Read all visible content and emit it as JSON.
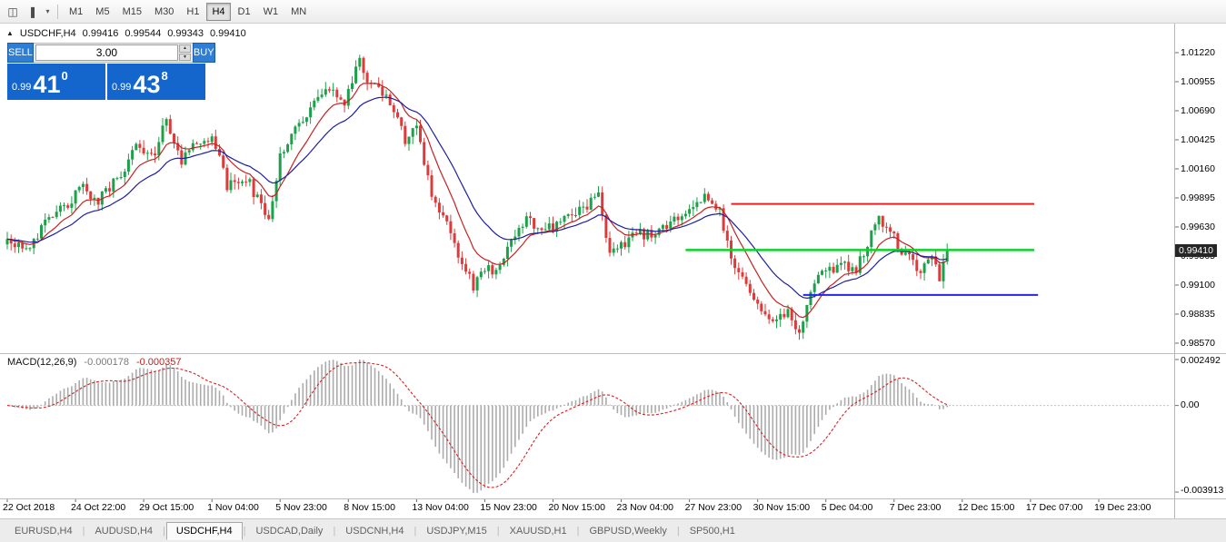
{
  "toolbar": {
    "icons": [
      {
        "name": "chart-window-icon",
        "glyph": "◫"
      },
      {
        "name": "candlestick-chart-icon",
        "glyph": "❚"
      },
      {
        "name": "dropdown-caret-icon",
        "glyph": "▾"
      }
    ],
    "timeframes": [
      {
        "label": "M1",
        "active": false
      },
      {
        "label": "M5",
        "active": false
      },
      {
        "label": "M15",
        "active": false
      },
      {
        "label": "M30",
        "active": false
      },
      {
        "label": "H1",
        "active": false
      },
      {
        "label": "H4",
        "active": true
      },
      {
        "label": "D1",
        "active": false
      },
      {
        "label": "W1",
        "active": false
      },
      {
        "label": "MN",
        "active": false
      }
    ]
  },
  "chart": {
    "header": {
      "toggle_glyph": "▲",
      "symbol_period": "USDCHF,H4",
      "open": "0.99416",
      "high": "0.99544",
      "low": "0.99343",
      "close": "0.99410"
    },
    "trade_widget": {
      "sell_button": "SELL",
      "buy_button": "BUY",
      "volume": "3.00",
      "spinner_up": "▲",
      "spinner_down": "▼",
      "sell_price": {
        "small": "0.99",
        "big": "41",
        "sup": "0"
      },
      "buy_price": {
        "small": "0.99",
        "big": "43",
        "sup": "8"
      }
    },
    "price_axis": {
      "ticks": [
        "1.01220",
        "1.00955",
        "1.00690",
        "1.00425",
        "1.00160",
        "0.99895",
        "0.99630",
        "0.99365",
        "0.99100",
        "0.98835",
        "0.98570"
      ],
      "current_price": "0.99410"
    },
    "time_axis": {
      "labels": [
        "22 Oct 2018",
        "24 Oct 22:00",
        "29 Oct 15:00",
        "1 Nov 04:00",
        "5 Nov 23:00",
        "8 Nov 15:00",
        "13 Nov 04:00",
        "15 Nov 23:00",
        "20 Nov 15:00",
        "23 Nov 04:00",
        "27 Nov 23:00",
        "30 Nov 15:00",
        "5 Dec 04:00",
        "7 Dec 23:00",
        "12 Dec 15:00",
        "17 Dec 07:00",
        "19 Dec 23:00"
      ]
    }
  },
  "macd": {
    "title": "MACD(12,26,9)",
    "main_value": "-0.000178",
    "signal_value": "-0.000357",
    "axis_top": "0.002492",
    "axis_zero": "0.00",
    "axis_bottom": "-0.003913"
  },
  "tabs": [
    {
      "label": "EURUSD,H4",
      "active": false
    },
    {
      "label": "AUDUSD,H4",
      "active": false
    },
    {
      "label": "USDCHF,H4",
      "active": true
    },
    {
      "label": "USDCAD,Daily",
      "active": false
    },
    {
      "label": "USDCNH,H4",
      "active": false
    },
    {
      "label": "USDJPY,M15",
      "active": false
    },
    {
      "label": "XAUUSD,H1",
      "active": false
    },
    {
      "label": "GBPUSD,Weekly",
      "active": false
    },
    {
      "label": "SP500,H1",
      "active": false
    }
  ],
  "chart_data": {
    "type": "candlestick",
    "symbol": "USDCHF",
    "timeframe": "H4",
    "title": "USDCHF,H4",
    "price_axis_range": [
      0.98479,
      1.01485
    ],
    "candle_count": 249,
    "last_close": 0.9941,
    "time_label_step": 18,
    "close_anchors": [
      [
        0,
        0.9952
      ],
      [
        5,
        0.9945
      ],
      [
        12,
        0.9972
      ],
      [
        20,
        0.9998
      ],
      [
        24,
        0.9986
      ],
      [
        29,
        1.0008
      ],
      [
        34,
        1.0035
      ],
      [
        39,
        1.0026
      ],
      [
        42,
        1.0062
      ],
      [
        46,
        1.0024
      ],
      [
        50,
        1.004
      ],
      [
        54,
        1.0048
      ],
      [
        58,
        1.0
      ],
      [
        63,
        1.0008
      ],
      [
        69,
        0.9968
      ],
      [
        72,
        1.003
      ],
      [
        77,
        1.0058
      ],
      [
        82,
        1.0078
      ],
      [
        86,
        1.0092
      ],
      [
        89,
        1.0072
      ],
      [
        93,
        1.0118
      ],
      [
        96,
        1.009
      ],
      [
        100,
        1.0085
      ],
      [
        105,
        1.0042
      ],
      [
        108,
        1.0058
      ],
      [
        112,
        0.9992
      ],
      [
        116,
        0.9966
      ],
      [
        119,
        0.9938
      ],
      [
        123,
        0.9908
      ],
      [
        126,
        0.9922
      ],
      [
        130,
        0.9928
      ],
      [
        134,
        0.9952
      ],
      [
        137,
        0.9972
      ],
      [
        142,
        0.9958
      ],
      [
        146,
        0.997
      ],
      [
        149,
        0.9974
      ],
      [
        153,
        0.9984
      ],
      [
        156,
        0.999
      ],
      [
        159,
        0.9934
      ],
      [
        162,
        0.9946
      ],
      [
        166,
        0.996
      ],
      [
        170,
        0.9954
      ],
      [
        173,
        0.9964
      ],
      [
        177,
        0.9974
      ],
      [
        180,
        0.9982
      ],
      [
        184,
        0.9988
      ],
      [
        188,
        0.9978
      ],
      [
        191,
        0.993
      ],
      [
        195,
        0.991
      ],
      [
        198,
        0.9896
      ],
      [
        202,
        0.9874
      ],
      [
        206,
        0.9886
      ],
      [
        209,
        0.9864
      ],
      [
        213,
        0.9914
      ],
      [
        216,
        0.992
      ],
      [
        220,
        0.993
      ],
      [
        224,
        0.9926
      ],
      [
        227,
        0.9946
      ],
      [
        230,
        0.9972
      ],
      [
        233,
        0.9958
      ],
      [
        237,
        0.9936
      ],
      [
        241,
        0.9924
      ],
      [
        244,
        0.9932
      ],
      [
        246,
        0.9918
      ],
      [
        248,
        0.9941
      ]
    ],
    "candle_colors": {
      "bull": "#1ca04a",
      "bear": "#dd3b3b"
    },
    "moving_averages": [
      {
        "name": "fast-ma",
        "method": "ema",
        "period": 10,
        "color": "#c62222",
        "width": 1.2
      },
      {
        "name": "slow-ma",
        "method": "ema",
        "period": 22,
        "color": "#1f1f9e",
        "width": 1.2
      }
    ],
    "trendlines": [
      {
        "name": "resistance-line",
        "price": 0.9984,
        "from_bar": 191,
        "to_bar": 271,
        "color": "#e82222",
        "width": 2
      },
      {
        "name": "mid-support-line",
        "price": 0.9942,
        "from_bar": 179,
        "to_bar": 271,
        "color": "#0ad426",
        "width": 2.5
      },
      {
        "name": "lower-support-line",
        "price": 0.9901,
        "from_bar": 210,
        "to_bar": 272,
        "color": "#2626e8",
        "width": 2
      }
    ],
    "macd_params": [
      12,
      26,
      9
    ],
    "macd_colors": {
      "histogram": "#ababab",
      "signal": "#d42222"
    }
  }
}
